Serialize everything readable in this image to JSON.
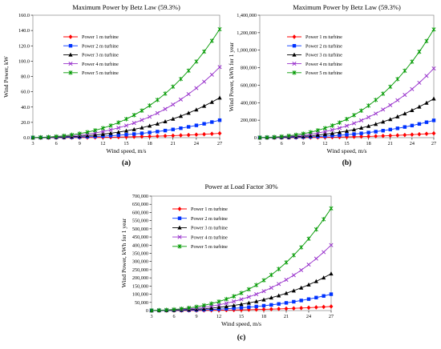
{
  "chart_data": [
    {
      "id": "a",
      "type": "line",
      "caption": "(a)",
      "title": "Maximum Power by Betz Law (59.3%)",
      "xlabel": "Wind speed, m/s",
      "ylabel": "Wind Power, kW",
      "x_ticks": [
        "3",
        "6",
        "9",
        "12",
        "15",
        "18",
        "21",
        "24",
        "27"
      ],
      "y_ticks": [
        "0.0",
        "20.0",
        "40.0",
        "60.0",
        "80.0",
        "100.0",
        "120.0",
        "140.0",
        "160.0"
      ],
      "xlim": [
        3,
        27
      ],
      "ylim": [
        0,
        160
      ],
      "legend_position": "top-left",
      "x": [
        3,
        4,
        5,
        6,
        7,
        8,
        9,
        10,
        11,
        12,
        13,
        14,
        15,
        16,
        17,
        18,
        19,
        20,
        21,
        22,
        23,
        24,
        25,
        26,
        27
      ],
      "series": [
        {
          "name": "Power 1 m turbine",
          "color": "#ff0000",
          "marker": "diamond",
          "values": [
            0.01,
            0.02,
            0.04,
            0.06,
            0.1,
            0.15,
            0.21,
            0.29,
            0.38,
            0.5,
            0.63,
            0.79,
            0.97,
            1.18,
            1.42,
            1.69,
            1.98,
            2.31,
            2.67,
            3.07,
            3.51,
            3.99,
            4.5,
            5.06,
            5.67
          ]
        },
        {
          "name": "Power 2 m turbine",
          "color": "#0033ff",
          "marker": "square",
          "values": [
            0.03,
            0.08,
            0.15,
            0.25,
            0.4,
            0.6,
            0.85,
            1.17,
            1.55,
            2.01,
            2.56,
            3.19,
            3.93,
            4.76,
            5.71,
            6.78,
            7.97,
            9.3,
            10.76,
            12.37,
            14.14,
            16.06,
            18.15,
            20.41,
            22.85
          ]
        },
        {
          "name": "Power 3 m turbine",
          "color": "#000000",
          "marker": "triangle",
          "values": [
            0.07,
            0.17,
            0.33,
            0.57,
            0.91,
            1.36,
            1.93,
            2.65,
            3.53,
            4.58,
            5.82,
            7.27,
            8.94,
            10.85,
            13.01,
            15.44,
            18.16,
            21.18,
            24.52,
            28.19,
            32.21,
            36.6,
            41.36,
            46.53,
            52.11
          ]
        },
        {
          "name": "Power 4 m turbine",
          "color": "#9933cc",
          "marker": "x",
          "values": [
            0.12,
            0.3,
            0.59,
            1.01,
            1.61,
            2.4,
            3.42,
            4.69,
            6.24,
            8.1,
            10.3,
            12.87,
            15.82,
            19.2,
            23.03,
            27.32,
            32.13,
            37.47,
            43.37,
            49.87,
            56.98,
            64.75,
            73.19,
            82.33,
            92.21
          ]
        },
        {
          "name": "Power 5 m turbine",
          "color": "#009900",
          "marker": "star",
          "values": [
            0.19,
            0.46,
            0.9,
            1.56,
            2.47,
            3.69,
            5.25,
            7.2,
            9.58,
            12.44,
            15.82,
            19.76,
            24.3,
            29.49,
            35.37,
            41.98,
            49.36,
            57.56,
            66.63,
            76.61,
            87.54,
            99.47,
            112.44,
            126.49,
            141.68
          ]
        }
      ]
    },
    {
      "id": "b",
      "type": "line",
      "caption": "(b)",
      "title": "Maximum Power by Betz Law (59.3%)",
      "xlabel": "Wind speed, m/s",
      "ylabel": "Wind Power, kWh for 1 year",
      "x_ticks": [
        "3",
        "6",
        "9",
        "12",
        "15",
        "18",
        "21",
        "24",
        "27"
      ],
      "y_ticks": [
        "0",
        "200,000",
        "400,000",
        "600,000",
        "800,000",
        "1,000,000",
        "1,200,000",
        "1,400,000"
      ],
      "xlim": [
        3,
        27
      ],
      "ylim": [
        0,
        1400000
      ],
      "legend_position": "top-left",
      "x": [
        3,
        4,
        5,
        6,
        7,
        8,
        9,
        10,
        11,
        12,
        13,
        14,
        15,
        16,
        17,
        18,
        19,
        20,
        21,
        22,
        23,
        24,
        25,
        26,
        27
      ],
      "series": [
        {
          "name": "Power 1 m turbine",
          "color": "#ff0000",
          "marker": "diamond",
          "values": [
            68,
            161,
            315,
            544,
            864,
            1290,
            1837,
            2519,
            3353,
            4353,
            5535,
            6913,
            8502,
            10318,
            12376,
            14691,
            17278,
            20153,
            23330,
            26825,
            30652,
            34829,
            39368,
            44287,
            49600
          ]
        },
        {
          "name": "Power 2 m turbine",
          "color": "#0033ff",
          "marker": "square",
          "values": [
            271,
            643,
            1256,
            2170,
            3446,
            5143,
            7323,
            10045,
            13370,
            17357,
            22068,
            27563,
            33901,
            41144,
            49351,
            58581,
            68898,
            80357,
            93031,
            106968,
            122230,
            138872,
            156980,
            176570,
            197785
          ]
        },
        {
          "name": "Power 3 m turbine",
          "color": "#000000",
          "marker": "triangle",
          "values": [
            611,
            1448,
            2827,
            4886,
            7758,
            11580,
            16488,
            22617,
            30103,
            39081,
            49688,
            62059,
            76330,
            92637,
            111116,
            131896,
            155126,
            180925,
            209461,
            240844,
            275206,
            312674,
            353442,
            397547,
            445311
          ]
        },
        {
          "name": "Power 4 m turbine",
          "color": "#9933cc",
          "marker": "x",
          "values": [
            1085,
            2572,
            5023,
            8681,
            13785,
            20577,
            29299,
            40190,
            53493,
            69446,
            88292,
            110276,
            135635,
            164614,
            197451,
            234379,
            275656,
            321495,
            372207,
            427967,
            489018,
            555572,
            628014,
            706406,
            791323
          ]
        },
        {
          "name": "Power 5 m turbine",
          "color": "#009900",
          "marker": "star",
          "values": [
            1697,
            4022,
            7856,
            13575,
            21557,
            32178,
            45817,
            62848,
            83650,
            108597,
            138066,
            172445,
            212101,
            257416,
            308767,
            366527,
            431053,
            502757,
            582033,
            669247,
            764709,
            868752,
            982045,
            1104632,
            1237418
          ]
        }
      ]
    },
    {
      "id": "c",
      "type": "line",
      "caption": "(c)",
      "title": "Power at Load Factor 30%",
      "xlabel": "Wind speed, m/s",
      "ylabel": "Wind Power, kWh for 1 year",
      "x_ticks": [
        "3",
        "6",
        "9",
        "12",
        "15",
        "18",
        "21",
        "24",
        "27"
      ],
      "y_ticks": [
        "0",
        "50,000",
        "100,000",
        "150,000",
        "200,000",
        "250,000",
        "300,000",
        "350,000",
        "400,000",
        "450,000",
        "500,000",
        "550,000",
        "600,000",
        "650,000",
        "700,000"
      ],
      "xlim": [
        3,
        27
      ],
      "ylim": [
        0,
        700000
      ],
      "legend_position": "top-left",
      "x": [
        3,
        4,
        5,
        6,
        7,
        8,
        9,
        10,
        11,
        12,
        13,
        14,
        15,
        16,
        17,
        18,
        19,
        20,
        21,
        22,
        23,
        24,
        25,
        26,
        27
      ],
      "series": [
        {
          "name": "Power 1 m turbine",
          "color": "#ff0000",
          "marker": "diamond",
          "values": [
            34,
            81,
            159,
            275,
            437,
            653,
            929,
            1274,
            1696,
            2202,
            2800,
            3497,
            4301,
            5220,
            6261,
            7432,
            8741,
            10195,
            11802,
            13571,
            15507,
            17619,
            19915,
            22404,
            25092
          ]
        },
        {
          "name": "Power 2 m turbine",
          "color": "#0033ff",
          "marker": "square",
          "values": [
            137,
            325,
            636,
            1098,
            1744,
            2603,
            3706,
            5084,
            6766,
            8785,
            11168,
            13948,
            17157,
            20821,
            24975,
            29646,
            34865,
            40664,
            47074,
            54121,
            61834,
            70258,
            79407,
            89353,
            100088
          ]
        },
        {
          "name": "Power 3 m turbine",
          "color": "#000000",
          "marker": "triangle",
          "values": [
            309,
            732,
            1430,
            2471,
            3924,
            5858,
            8341,
            11442,
            15228,
            19770,
            25136,
            31394,
            38613,
            46862,
            56211,
            66725,
            78470,
            91522,
            105953,
            121826,
            139200,
            158153,
            178744,
            201033,
            225279
          ]
        },
        {
          "name": "Power 4 m turbine",
          "color": "#9933cc",
          "marker": "x",
          "values": [
            549,
            1301,
            2541,
            4392,
            6974,
            10410,
            14821,
            20330,
            27064,
            35134,
            44666,
            55787,
            68618,
            83282,
            99888,
            118573,
            139449,
            162640,
            188277,
            216484,
            247363,
            281056,
            317661,
            357314,
            400298
          ]
        },
        {
          "name": "Power 5 m turbine",
          "color": "#009900",
          "marker": "star",
          "values": [
            858,
            2034,
            3974,
            6868,
            10905,
            16278,
            23179,
            31794,
            42315,
            54941,
            69846,
            87238,
            107291,
            130216,
            156180,
            185399,
            218037,
            254300,
            294404,
            338480,
            386748,
            439375,
            496526,
            558357,
            625030
          ]
        }
      ]
    }
  ]
}
